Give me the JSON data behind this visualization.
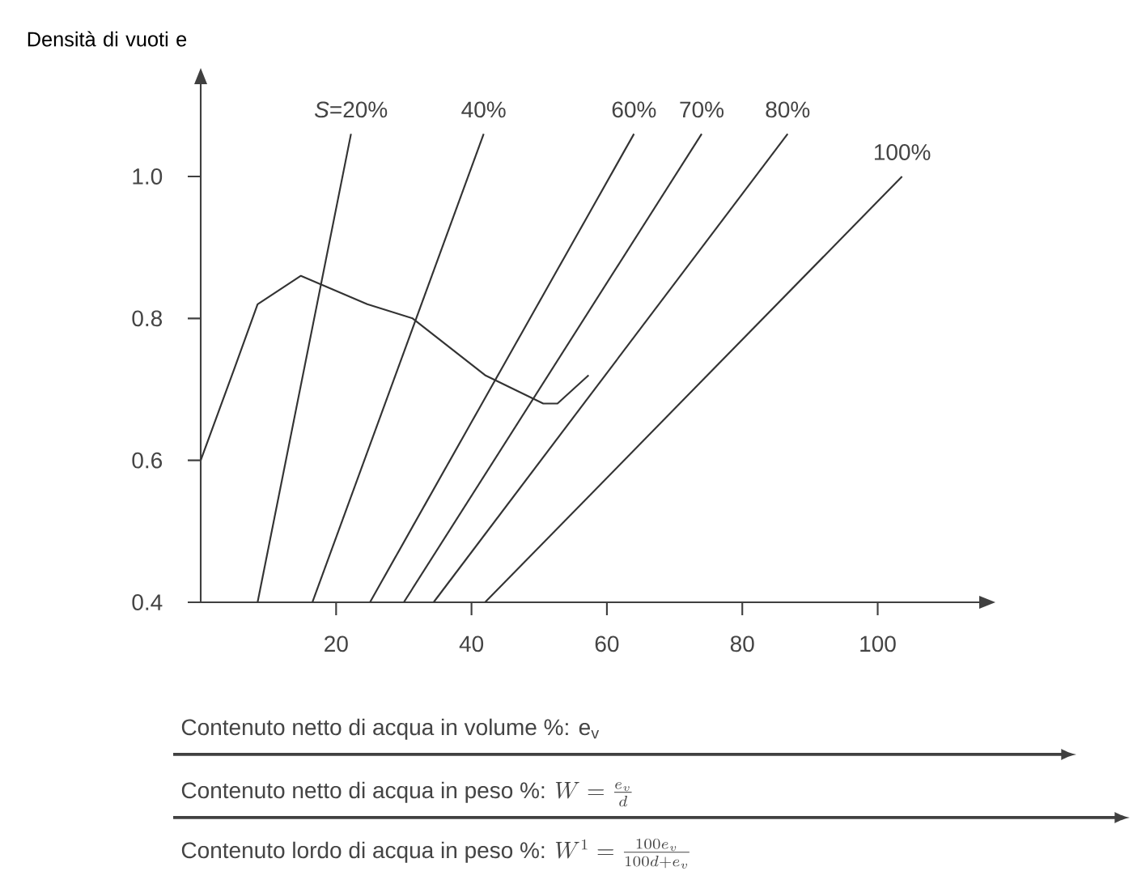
{
  "chart_data": {
    "type": "line",
    "ylabel": "Densità di vuoti e",
    "xlabel": "Contenuto netto di acqua in volume %: e$_{v}$",
    "annotations": [
      "Contenuto netto di acqua in peso %:",
      "W = \\frac{e_v}{d}",
      "Contenuto lordo di acqua in peso %:",
      "W^1 = \\frac{100e_v}{100d+e_v}"
    ],
    "xlim": [
      0,
      115
    ],
    "ylim": [
      0.4,
      1.13
    ],
    "xticks": [
      20,
      40,
      60,
      80,
      100
    ],
    "yticks": [
      0.4,
      0.6,
      0.8,
      {
        "value": 1.0,
        "label": "1.0"
      }
    ],
    "series": [
      {
        "color": "#333333",
        "x": [
          0,
          5,
          8.4,
          14.8,
          24.6,
          31.3,
          42,
          50.6,
          52.7,
          57.3
        ],
        "values": [
          0.6,
          0.73,
          0.82,
          0.86,
          0.82,
          0.8,
          0.72,
          0.68,
          0.68,
          0.72
        ]
      },
      {
        "name": "*S*=20%",
        "color": "#333333",
        "x": [
          8.4,
          22.2
        ],
        "values": [
          0.4,
          1.06
        ]
      },
      {
        "name": "40%",
        "color": "#333333",
        "x": [
          16.5,
          41.8
        ],
        "values": [
          0.4,
          1.06
        ]
      },
      {
        "name": "60%",
        "color": "#333333",
        "x": [
          25,
          64
        ],
        "values": [
          0.4,
          1.06
        ]
      },
      {
        "name": "70%",
        "color": "#333333",
        "x": [
          30,
          74
        ],
        "values": [
          0.4,
          1.06
        ]
      },
      {
        "name": "80%",
        "color": "#333333",
        "x": [
          34.4,
          86.7
        ],
        "values": [
          0.4,
          1.06
        ]
      },
      {
        "name": "100%",
        "color": "#333333",
        "x": [
          42,
          103.6
        ],
        "values": [
          0.4,
          1.0
        ]
      }
    ]
  }
}
